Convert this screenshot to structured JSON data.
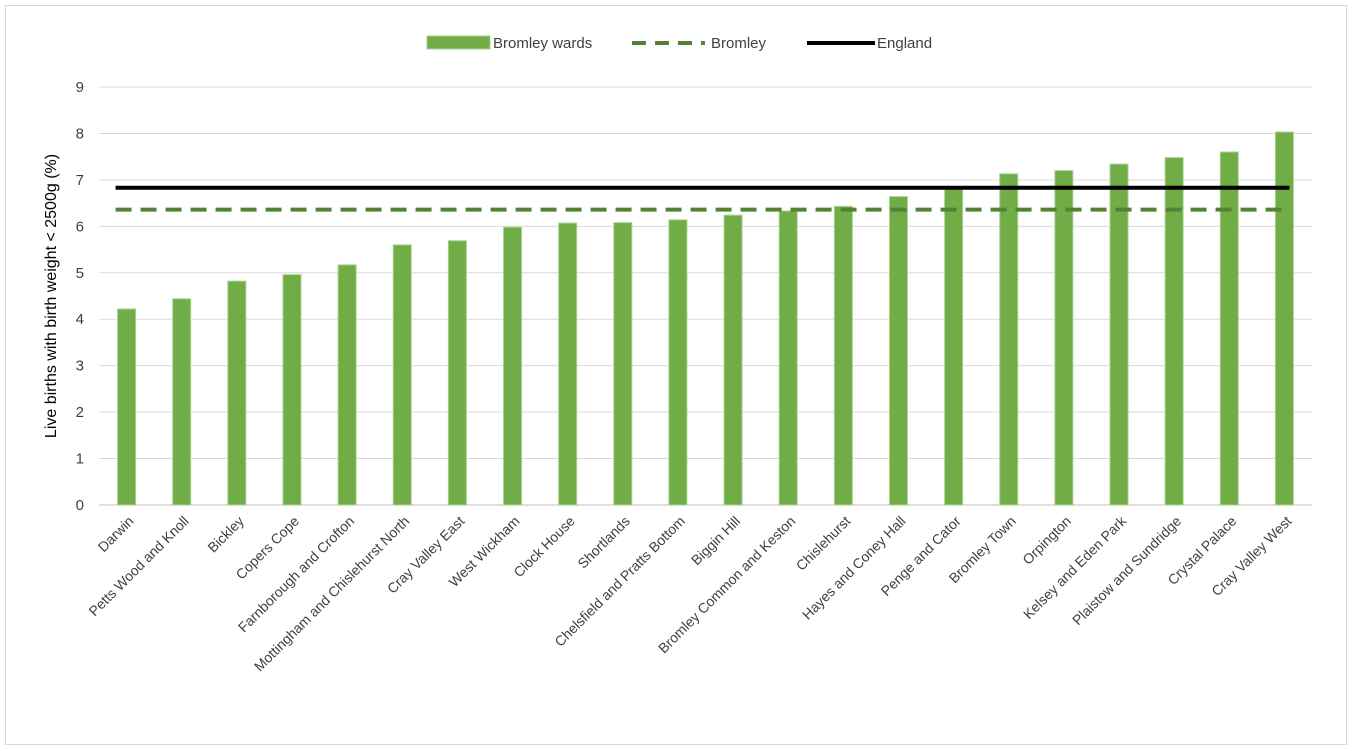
{
  "chart_data": {
    "type": "bar",
    "title": "",
    "xlabel": "",
    "ylabel": "Live births with birth weight < 2500g (%)",
    "ylim": [
      0,
      9
    ],
    "yticks": [
      0,
      1,
      2,
      3,
      4,
      5,
      6,
      7,
      8,
      9
    ],
    "grid": true,
    "legend_position": "top",
    "categories": [
      "Darwin",
      "Petts Wood and Knoll",
      "Bickley",
      "Copers Cope",
      "Farnborough and Crofton",
      "Mottingham and Chislehurst North",
      "Cray Valley East",
      "West Wickham",
      "Clock House",
      "Shortlands",
      "Chelsfield and Pratts Bottom",
      "Biggin Hill",
      "Bromley Common and Keston",
      "Chislehurst",
      "Hayes and Coney Hall",
      "Penge and Cator",
      "Bromley Town",
      "Orpington",
      "Kelsey and Eden Park",
      "Plaistow and Sundridge",
      "Crystal Palace",
      "Cray Valley West"
    ],
    "series": [
      {
        "name": "Bromley wards",
        "kind": "bar",
        "color": "#70ad47",
        "values": [
          4.22,
          4.44,
          4.82,
          4.96,
          5.17,
          5.6,
          5.69,
          5.98,
          6.07,
          6.08,
          6.14,
          6.24,
          6.33,
          6.43,
          6.64,
          6.82,
          7.13,
          7.2,
          7.34,
          7.48,
          7.6,
          8.03
        ]
      },
      {
        "name": "Bromley",
        "kind": "reference-line",
        "style": "dashed",
        "color": "#548235",
        "value": 6.36
      },
      {
        "name": "England",
        "kind": "reference-line",
        "style": "solid",
        "color": "#000000",
        "value": 6.83
      }
    ]
  }
}
